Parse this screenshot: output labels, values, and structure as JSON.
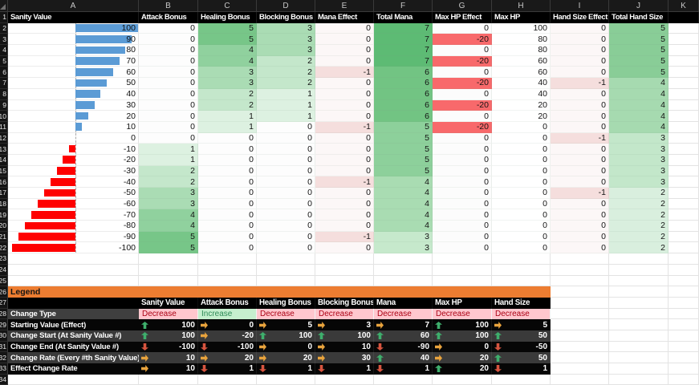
{
  "sheet": {
    "columns": [
      "A",
      "B",
      "C",
      "D",
      "E",
      "F",
      "G",
      "H",
      "I",
      "J",
      "K"
    ],
    "header_row": {
      "A": "Sanity Value",
      "B": "Attack Bonus",
      "C": "Healing Bonus",
      "D": "Blocking Bonus",
      "E": "Mana Effect",
      "F": "Total Mana",
      "G": "Max HP Effect",
      "H": "Max HP",
      "I": "Hand Size Effect",
      "J": "Total Hand Size",
      "K": ""
    },
    "grid_rows": [
      {
        "n": 2,
        "A": 100,
        "B": 0,
        "C": 5,
        "D": 3,
        "E": 0,
        "F": 7,
        "G": 0,
        "H": 100,
        "I": 0,
        "J": 5
      },
      {
        "n": 3,
        "A": 90,
        "B": 0,
        "C": 5,
        "D": 3,
        "E": 0,
        "F": 7,
        "G": -20,
        "H": 80,
        "I": 0,
        "J": 5
      },
      {
        "n": 4,
        "A": 80,
        "B": 0,
        "C": 4,
        "D": 3,
        "E": 0,
        "F": 7,
        "G": 0,
        "H": 80,
        "I": 0,
        "J": 5
      },
      {
        "n": 5,
        "A": 70,
        "B": 0,
        "C": 4,
        "D": 2,
        "E": 0,
        "F": 7,
        "G": -20,
        "H": 60,
        "I": 0,
        "J": 5
      },
      {
        "n": 6,
        "A": 60,
        "B": 0,
        "C": 3,
        "D": 2,
        "E": -1,
        "F": 6,
        "G": 0,
        "H": 60,
        "I": 0,
        "J": 5
      },
      {
        "n": 7,
        "A": 50,
        "B": 0,
        "C": 3,
        "D": 2,
        "E": 0,
        "F": 6,
        "G": -20,
        "H": 40,
        "I": -1,
        "J": 4
      },
      {
        "n": 8,
        "A": 40,
        "B": 0,
        "C": 2,
        "D": 1,
        "E": 0,
        "F": 6,
        "G": 0,
        "H": 40,
        "I": 0,
        "J": 4
      },
      {
        "n": 9,
        "A": 30,
        "B": 0,
        "C": 2,
        "D": 1,
        "E": 0,
        "F": 6,
        "G": -20,
        "H": 20,
        "I": 0,
        "J": 4
      },
      {
        "n": 10,
        "A": 20,
        "B": 0,
        "C": 1,
        "D": 1,
        "E": 0,
        "F": 6,
        "G": 0,
        "H": 20,
        "I": 0,
        "J": 4
      },
      {
        "n": 11,
        "A": 10,
        "B": 0,
        "C": 1,
        "D": 0,
        "E": -1,
        "F": 5,
        "G": -20,
        "H": 0,
        "I": 0,
        "J": 4
      },
      {
        "n": 12,
        "A": 0,
        "B": 0,
        "C": 0,
        "D": 0,
        "E": 0,
        "F": 5,
        "G": 0,
        "H": 0,
        "I": -1,
        "J": 3
      },
      {
        "n": 13,
        "A": -10,
        "B": 1,
        "C": 0,
        "D": 0,
        "E": 0,
        "F": 5,
        "G": 0,
        "H": 0,
        "I": 0,
        "J": 3
      },
      {
        "n": 14,
        "A": -20,
        "B": 1,
        "C": 0,
        "D": 0,
        "E": 0,
        "F": 5,
        "G": 0,
        "H": 0,
        "I": 0,
        "J": 3
      },
      {
        "n": 15,
        "A": -30,
        "B": 2,
        "C": 0,
        "D": 0,
        "E": 0,
        "F": 5,
        "G": 0,
        "H": 0,
        "I": 0,
        "J": 3
      },
      {
        "n": 16,
        "A": -40,
        "B": 2,
        "C": 0,
        "D": 0,
        "E": -1,
        "F": 4,
        "G": 0,
        "H": 0,
        "I": 0,
        "J": 3
      },
      {
        "n": 17,
        "A": -50,
        "B": 3,
        "C": 0,
        "D": 0,
        "E": 0,
        "F": 4,
        "G": 0,
        "H": 0,
        "I": -1,
        "J": 2
      },
      {
        "n": 18,
        "A": -60,
        "B": 3,
        "C": 0,
        "D": 0,
        "E": 0,
        "F": 4,
        "G": 0,
        "H": 0,
        "I": 0,
        "J": 2
      },
      {
        "n": 19,
        "A": -70,
        "B": 4,
        "C": 0,
        "D": 0,
        "E": 0,
        "F": 4,
        "G": 0,
        "H": 0,
        "I": 0,
        "J": 2
      },
      {
        "n": 20,
        "A": -80,
        "B": 4,
        "C": 0,
        "D": 0,
        "E": 0,
        "F": 4,
        "G": 0,
        "H": 0,
        "I": 0,
        "J": 2
      },
      {
        "n": 21,
        "A": -90,
        "B": 5,
        "C": 0,
        "D": 0,
        "E": -1,
        "F": 3,
        "G": 0,
        "H": 0,
        "I": 0,
        "J": 2
      },
      {
        "n": 22,
        "A": -100,
        "B": 5,
        "C": 0,
        "D": 0,
        "E": 0,
        "F": 3,
        "G": 0,
        "H": 0,
        "I": 0,
        "J": 2
      }
    ],
    "empty_rows_before_legend": [
      23,
      24,
      25
    ],
    "empty_rows_after_legend": [
      34
    ]
  },
  "legend": {
    "title_row": {
      "n": 26,
      "title": "Legend"
    },
    "headers_row": {
      "n": 27,
      "labels": [
        "Sanity Value",
        "Attack Bonus",
        "Healing Bonus",
        "Blocking Bonus",
        "Mana",
        "Max HP",
        "Hand Size"
      ]
    },
    "change_type_row": {
      "n": 28,
      "label": "Change Type",
      "cells": [
        {
          "text": "Decrease",
          "kind": "bad"
        },
        {
          "text": "Increase",
          "kind": "good"
        },
        {
          "text": "Decrease",
          "kind": "bad"
        },
        {
          "text": "Decrease",
          "kind": "bad"
        },
        {
          "text": "Decrease",
          "kind": "bad"
        },
        {
          "text": "Decrease",
          "kind": "bad"
        },
        {
          "text": "Decrease",
          "kind": "bad"
        }
      ]
    },
    "rows": [
      {
        "n": 29,
        "label": "Starting Value (Effect)",
        "cells": [
          {
            "arrow": "up",
            "value": 100
          },
          {
            "arrow": "right",
            "value": 0
          },
          {
            "arrow": "right",
            "value": 5
          },
          {
            "arrow": "right",
            "value": 3
          },
          {
            "arrow": "right",
            "value": 7
          },
          {
            "arrow": "up",
            "value": 100
          },
          {
            "arrow": "right",
            "value": 5
          }
        ]
      },
      {
        "n": 30,
        "label": "Change Start (At Sanity Value #)",
        "cells": [
          {
            "arrow": "up",
            "value": 100
          },
          {
            "arrow": "right",
            "value": -20
          },
          {
            "arrow": "up",
            "value": 100
          },
          {
            "arrow": "up",
            "value": 100
          },
          {
            "arrow": "up",
            "value": 60
          },
          {
            "arrow": "up",
            "value": 100
          },
          {
            "arrow": "up",
            "value": 50
          }
        ]
      },
      {
        "n": 31,
        "label": "Change End (At Sanity Value #)",
        "cells": [
          {
            "arrow": "down",
            "value": -100
          },
          {
            "arrow": "down",
            "value": -100
          },
          {
            "arrow": "right",
            "value": 0
          },
          {
            "arrow": "right",
            "value": 10
          },
          {
            "arrow": "down",
            "value": -90
          },
          {
            "arrow": "right",
            "value": 0
          },
          {
            "arrow": "down",
            "value": -50
          }
        ]
      },
      {
        "n": 32,
        "label": "Change Rate (Every #th Sanity Value)",
        "cells": [
          {
            "arrow": "right",
            "value": 10
          },
          {
            "arrow": "right",
            "value": 20
          },
          {
            "arrow": "right",
            "value": 20
          },
          {
            "arrow": "right",
            "value": 30
          },
          {
            "arrow": "up",
            "value": 40
          },
          {
            "arrow": "right",
            "value": 20
          },
          {
            "arrow": "up",
            "value": 50
          }
        ]
      },
      {
        "n": 33,
        "label": "Effect Change Rate",
        "cells": [
          {
            "arrow": "right",
            "value": 10
          },
          {
            "arrow": "down",
            "value": 1
          },
          {
            "arrow": "down",
            "value": 1
          },
          {
            "arrow": "down",
            "value": 1
          },
          {
            "arrow": "down",
            "value": 1
          },
          {
            "arrow": "up",
            "value": 20
          },
          {
            "arrow": "down",
            "value": 1
          }
        ]
      }
    ]
  },
  "colors": {
    "bar_positive": "#5B9BD5",
    "bar_negative": "#FE0000",
    "legend_orange": "#ED7D31",
    "change_type_label_bg": "#3F3F3F",
    "legend_row_bg_dark": "#060606",
    "legend_row_bg_alt": "#3A3A3A",
    "bad_bg": "#FFC7CE",
    "bad_text": "#AB0014",
    "good_bg": "#C6EFCE",
    "good_text": "#2E8B57",
    "arrows": {
      "up": "#3EAE6C",
      "right": "#E8A33D",
      "down": "#D6543F"
    },
    "fills": {
      "bcd": {
        "0": "#FDFDFD",
        "1": "#DDF1E1",
        "2": "#C4E7CB",
        "3": "#AADCB4",
        "4": "#90D19E",
        "5": "#77C688"
      },
      "f": {
        "3": "#C6E9CC",
        "4": "#A9DCB2",
        "5": "#8DD09B",
        "6": "#72C483",
        "7": "#5DBB74"
      },
      "j": {
        "2": "#D9EFDE",
        "3": "#C3E7CA",
        "4": "#A6DAB0",
        "5": "#89CD97"
      },
      "ei": {
        "0": "#FCF7F7",
        "-1": "#F5DEDD"
      },
      "g": {
        "0": "#FCFCFC",
        "-20": "#F8696B"
      },
      "h": "#FFFFFF"
    }
  }
}
